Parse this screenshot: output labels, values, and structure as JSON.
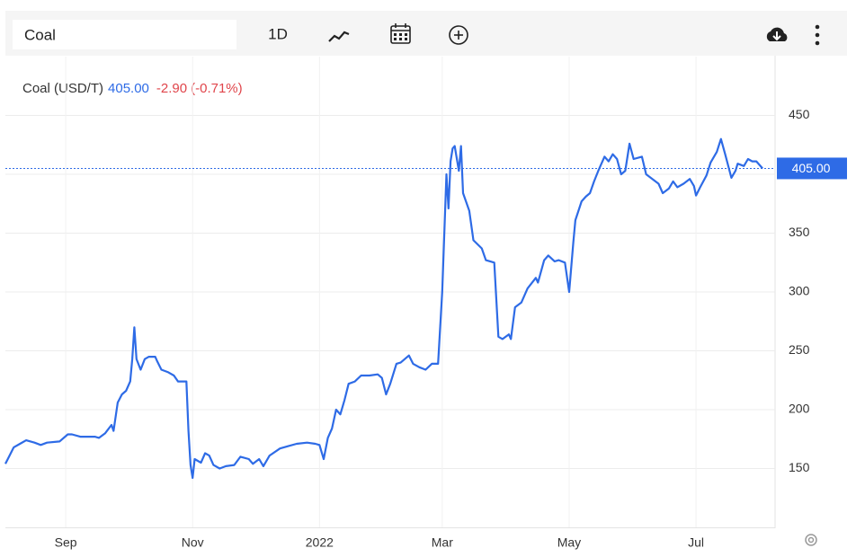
{
  "toolbar": {
    "symbol": "Coal",
    "interval": "1D"
  },
  "chart_data": {
    "type": "line",
    "legend_label": "Coal (USD/T)",
    "last_value": 405,
    "last_value_label": "405.00",
    "change": "-2.90",
    "change_percent": "(-0.71%)",
    "color": "#2e6be6",
    "change_color": "#e0454b",
    "x": [
      0,
      4,
      7,
      10,
      14,
      17,
      20,
      26,
      30,
      32,
      36,
      43,
      45,
      48,
      51,
      52,
      54,
      56,
      58,
      60,
      61,
      62,
      63,
      65,
      67,
      69,
      72,
      73,
      75,
      78,
      81,
      83,
      87,
      88,
      89,
      90,
      91,
      94,
      96,
      98,
      100,
      103,
      106,
      110,
      113,
      117,
      119,
      122,
      124,
      127,
      132,
      136,
      140,
      145,
      149,
      151,
      153,
      155,
      157,
      159,
      161,
      163,
      165,
      168,
      171,
      175,
      179,
      181,
      183,
      185,
      188,
      190,
      194,
      196,
      199,
      202,
      205,
      208,
      210,
      212,
      213,
      214,
      215,
      216,
      218,
      219,
      220,
      223,
      225,
      229,
      231,
      235,
      237,
      239,
      242,
      243,
      245,
      248,
      251,
      255,
      256,
      259,
      261,
      264,
      266,
      269,
      271,
      273,
      274,
      277,
      279,
      281,
      283,
      285,
      288,
      290,
      292,
      294,
      296,
      298,
      300,
      302,
      306,
      308,
      311,
      314,
      316,
      319,
      321,
      323,
      326,
      329,
      331,
      332,
      334,
      337,
      339,
      342,
      344,
      346,
      349,
      351,
      352,
      355,
      357,
      359,
      361,
      364
    ],
    "values": [
      154,
      168,
      171,
      174,
      172,
      170,
      172,
      173,
      179,
      179,
      177,
      177,
      176,
      180,
      187,
      182,
      206,
      213,
      216,
      224,
      243,
      270,
      243,
      234,
      243,
      245,
      245,
      241,
      234,
      232,
      229,
      224,
      224,
      182,
      153,
      142,
      158,
      155,
      163,
      161,
      153,
      150,
      152,
      153,
      160,
      158,
      154,
      158,
      152,
      161,
      167,
      169,
      171,
      172,
      171,
      170,
      158,
      176,
      184,
      200,
      196,
      208,
      222,
      224,
      229,
      229,
      230,
      227,
      213,
      222,
      239,
      240,
      246,
      239,
      236,
      234,
      239,
      239,
      300,
      400,
      371,
      411,
      422,
      424,
      403,
      424,
      384,
      369,
      344,
      337,
      327,
      325,
      262,
      260,
      264,
      260,
      287,
      291,
      303,
      312,
      308,
      327,
      331,
      326,
      327,
      325,
      300,
      342,
      361,
      377,
      381,
      384,
      394,
      403,
      415,
      411,
      417,
      413,
      400,
      403,
      426,
      413,
      415,
      400,
      396,
      392,
      384,
      388,
      394,
      389,
      392,
      396,
      390,
      382,
      389,
      399,
      410,
      419,
      430,
      417,
      397,
      403,
      409,
      407,
      413,
      411,
      411,
      405
    ],
    "xlim": [
      0,
      370
    ],
    "xticks": [
      {
        "value": 29,
        "label": "Sep"
      },
      {
        "value": 90,
        "label": "Nov"
      },
      {
        "value": 151,
        "label": "2022"
      },
      {
        "value": 210,
        "label": "Mar"
      },
      {
        "value": 271,
        "label": "May"
      },
      {
        "value": 332,
        "label": "Jul"
      }
    ],
    "ylim": [
      100,
      500
    ],
    "yticks": [
      150,
      200,
      250,
      300,
      350,
      400,
      450
    ],
    "grid": true
  }
}
